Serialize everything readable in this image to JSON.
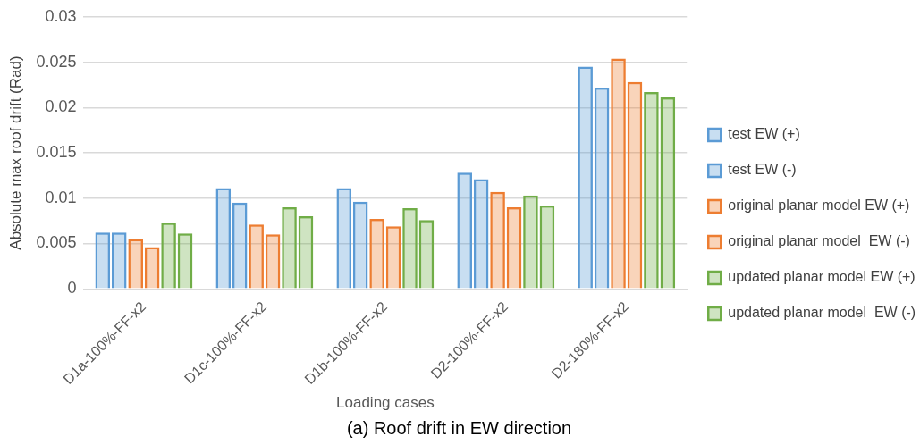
{
  "chart_data": {
    "type": "bar",
    "title": "(a) Roof drift in EW direction",
    "xlabel": "Loading cases",
    "ylabel": "Absolute max roof drift (Rad)",
    "categories": [
      "D1a-100%-FF-x2",
      "D1c-100%-FF-x2",
      "D1b-100%-FF-x2",
      "D2-100%-FF-x2",
      "D2-180%-FF-x2"
    ],
    "series": [
      {
        "name": "test EW (+)",
        "color": "#5b9bd5",
        "values": [
          0.0062,
          0.0111,
          0.0111,
          0.0128,
          0.0245
        ]
      },
      {
        "name": "test EW (-)",
        "color": "#5b9bd5",
        "values": [
          0.0062,
          0.0095,
          0.0096,
          0.0121,
          0.0222
        ]
      },
      {
        "name": "original planar model EW (+)",
        "color": "#ed7d31",
        "values": [
          0.0055,
          0.0071,
          0.0077,
          0.0107,
          0.0254
        ]
      },
      {
        "name": "original planar model  EW (-)",
        "color": "#ed7d31",
        "values": [
          0.0046,
          0.006,
          0.0069,
          0.009,
          0.0228
        ]
      },
      {
        "name": "updated planar model EW (+)",
        "color": "#70ad47",
        "values": [
          0.0073,
          0.009,
          0.0089,
          0.0103,
          0.0217
        ]
      },
      {
        "name": "updated planar model  EW (-)",
        "color": "#70ad47",
        "values": [
          0.0061,
          0.008,
          0.0076,
          0.0092,
          0.0211
        ]
      }
    ],
    "ylim": [
      0,
      0.03
    ],
    "yticks": [
      0,
      0.005,
      0.01,
      0.015,
      0.02,
      0.025,
      0.03
    ],
    "grid": "y",
    "legend": "right"
  }
}
